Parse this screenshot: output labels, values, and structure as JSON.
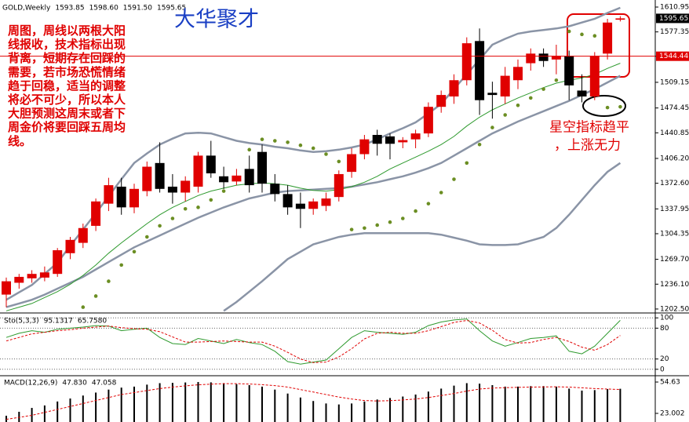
{
  "chart_data": [
    {
      "type": "candlestick",
      "title": "GOLD,Weekly",
      "ohlc_labels": [
        "1593.85",
        "1598.60",
        "1591.50",
        "1595.65"
      ],
      "categories": [
        null,
        null,
        null,
        null,
        null,
        null,
        null,
        null,
        null,
        null,
        null,
        null,
        null,
        null,
        null,
        null,
        null,
        null,
        null,
        null,
        null,
        null,
        null,
        null,
        null,
        null,
        null,
        null,
        null,
        null,
        null,
        null,
        null,
        null,
        null,
        null,
        null,
        null,
        null,
        null,
        null,
        null,
        null,
        null,
        null,
        null,
        null,
        null,
        null
      ],
      "open": [
        1222,
        1238,
        1244,
        1245,
        1250,
        1278,
        1292,
        1315,
        1345,
        1368,
        1340,
        1362,
        1400,
        1368,
        1360,
        1368,
        1410,
        1382,
        1375,
        1392,
        1415,
        1372,
        1358,
        1345,
        1338,
        1342,
        1354,
        1388,
        1412,
        1438,
        1436,
        1428,
        1432,
        1440,
        1476,
        1490,
        1512,
        1565,
        1495,
        1490,
        1512,
        1535,
        1548,
        1540,
        1545,
        1498,
        1490,
        1548,
        1593.85
      ],
      "high": [
        1245,
        1250,
        1255,
        1260,
        1285,
        1300,
        1318,
        1352,
        1380,
        1380,
        1372,
        1402,
        1428,
        1385,
        1382,
        1415,
        1430,
        1395,
        1392,
        1410,
        1425,
        1385,
        1370,
        1360,
        1352,
        1360,
        1390,
        1420,
        1438,
        1445,
        1440,
        1435,
        1445,
        1482,
        1498,
        1520,
        1570,
        1582,
        1510,
        1530,
        1540,
        1555,
        1555,
        1560,
        1552,
        1520,
        1550,
        1595,
        1598.6
      ],
      "low": [
        1205,
        1230,
        1238,
        1240,
        1246,
        1270,
        1285,
        1308,
        1335,
        1330,
        1332,
        1355,
        1360,
        1345,
        1348,
        1360,
        1380,
        1365,
        1370,
        1360,
        1360,
        1348,
        1330,
        1312,
        1330,
        1335,
        1348,
        1380,
        1405,
        1410,
        1405,
        1420,
        1420,
        1435,
        1468,
        1480,
        1505,
        1465,
        1460,
        1480,
        1500,
        1525,
        1530,
        1520,
        1485,
        1482,
        1485,
        1540,
        1591.5
      ],
      "close": [
        1240,
        1246,
        1250,
        1252,
        1282,
        1296,
        1312,
        1348,
        1370,
        1340,
        1365,
        1395,
        1365,
        1360,
        1376,
        1410,
        1386,
        1374,
        1383,
        1370,
        1372,
        1358,
        1340,
        1338,
        1348,
        1352,
        1385,
        1412,
        1432,
        1426,
        1426,
        1431,
        1440,
        1476,
        1492,
        1512,
        1562,
        1485,
        1492,
        1518,
        1530,
        1548,
        1538,
        1545,
        1505,
        1490,
        1545,
        1590,
        1595.65
      ],
      "up_color": "#e00000",
      "down_color": "#000000",
      "series": [
        {
          "style": "line",
          "color": "#8a94a6",
          "width": 2.5,
          "values": [
            1215,
            1225,
            1235,
            1250,
            1265,
            1288,
            1310,
            1332,
            1355,
            1378,
            1400,
            1413,
            1425,
            1433,
            1440,
            1441,
            1440,
            1435,
            1430,
            1427,
            1425,
            1422,
            1420,
            1417,
            1415,
            1416,
            1418,
            1421,
            1425,
            1432,
            1440,
            1447,
            1455,
            1467,
            1480,
            1500,
            1520,
            1540,
            1560,
            1568,
            1575,
            1578,
            1580,
            1582,
            1585,
            1590,
            1595,
            1603,
            1610
          ]
        },
        {
          "style": "line",
          "color": "#8a94a6",
          "width": 2.5,
          "values": [
            1205,
            1210,
            1215,
            1222,
            1230,
            1238,
            1246,
            1256,
            1266,
            1276,
            1286,
            1294,
            1302,
            1310,
            1318,
            1326,
            1333,
            1340,
            1346,
            1352,
            1356,
            1360,
            1362,
            1363,
            1364,
            1365,
            1366,
            1368,
            1371,
            1374,
            1378,
            1382,
            1387,
            1393,
            1400,
            1410,
            1420,
            1430,
            1440,
            1448,
            1456,
            1463,
            1470,
            1477,
            1484,
            1492,
            1500,
            1509,
            1518
          ]
        },
        {
          "style": "line",
          "color": "#8a94a6",
          "width": 2.5,
          "values": [
            null,
            null,
            null,
            null,
            null,
            null,
            null,
            null,
            null,
            null,
            null,
            null,
            null,
            null,
            null,
            null,
            null,
            1200,
            1212,
            1226,
            1240,
            1255,
            1270,
            1280,
            1290,
            1295,
            1300,
            1303,
            1305,
            1305,
            1305,
            1305,
            1305,
            1305,
            1303,
            1299,
            1295,
            1290,
            1289,
            1289,
            1290,
            1295,
            1300,
            1312,
            1330,
            1350,
            1370,
            1388,
            1400
          ]
        },
        {
          "style": "line",
          "color": "#2e9a2e",
          "width": 1,
          "values": [
            1200,
            1205,
            1210,
            1218,
            1226,
            1236,
            1248,
            1262,
            1278,
            1292,
            1305,
            1318,
            1330,
            1340,
            1348,
            1356,
            1362,
            1366,
            1370,
            1372,
            1373,
            1372,
            1370,
            1366,
            1363,
            1362,
            1364,
            1368,
            1374,
            1382,
            1392,
            1400,
            1408,
            1416,
            1425,
            1436,
            1450,
            1462,
            1472,
            1480,
            1488,
            1495,
            1502,
            1508,
            1512,
            1515,
            1520,
            1528,
            1535
          ]
        },
        {
          "style": "dots",
          "color": "#6b8e23",
          "width": 1,
          "values": [
            null,
            null,
            null,
            null,
            null,
            null,
            1205,
            1220,
            1240,
            1262,
            1280,
            1300,
            1315,
            1325,
            1338,
            1340,
            1350,
            1362,
            1378,
            1418,
            1432,
            1430,
            1428,
            1424,
            1420,
            1412,
            1402,
            1310,
            1312,
            1316,
            1320,
            1325,
            1335,
            1345,
            1360,
            1378,
            1400,
            1425,
            1448,
            1465,
            1478,
            1488,
            1500,
            1512,
            1578,
            1574,
            1572,
            1475,
            1476
          ]
        }
      ],
      "hline": {
        "value": 1544.44,
        "color": "#e00000"
      },
      "ylim": [
        1198.2,
        1620.5
      ],
      "yticks": [
        1610.95,
        1577.35,
        1544.44,
        1509.15,
        1474.45,
        1440.85,
        {
          "value": 1406.2,
          "label": "1406.20"
        },
        {
          "value": 1372.6,
          "label": "1372.60"
        },
        1337.95,
        1304.35,
        {
          "value": 1269.7,
          "label": "1269.70"
        },
        {
          "value": 1236.1,
          "label": "1236.10"
        },
        {
          "value": 1202.5,
          "label": "1202.50"
        }
      ],
      "watermark": "大华聚才",
      "note": [
        "周图，周线以两根大阳",
        "线报收，技术指标出现",
        "背离，短期存在回踩的",
        "需要，若市场恐慌情绪",
        "趋于回稳，适当的调整",
        "将必不可少，所以本人",
        "大胆预测这周末或者下",
        "周金价将要回踩五周均",
        "线。"
      ],
      "note2": [
        "星空指标趋平",
        "，上涨无力"
      ]
    },
    {
      "type": "line",
      "title": "Sto(5,3,3)",
      "last_labels": [
        "95.1317",
        "65.7580"
      ],
      "categories": [
        null,
        null,
        null,
        null,
        null,
        null,
        null,
        null,
        null,
        null,
        null,
        null,
        null,
        null,
        null,
        null,
        null,
        null,
        null,
        null,
        null,
        null,
        null,
        null,
        null,
        null,
        null,
        null,
        null,
        null,
        null,
        null,
        null,
        null,
        null,
        null,
        null,
        null,
        null,
        null,
        null,
        null,
        null,
        null,
        null,
        null,
        null,
        null,
        null
      ],
      "series": [
        {
          "style": "line",
          "color": "#2e9a2e",
          "values": [
            62,
            70,
            75,
            72,
            78,
            80,
            82,
            85,
            84,
            75,
            78,
            80,
            62,
            50,
            48,
            60,
            55,
            50,
            58,
            52,
            48,
            35,
            15,
            10,
            14,
            18,
            40,
            62,
            75,
            72,
            70,
            68,
            72,
            85,
            92,
            96,
            98,
            75,
            55,
            45,
            52,
            60,
            62,
            65,
            35,
            30,
            45,
            70,
            95.1317
          ]
        },
        {
          "style": "dashed",
          "color": "#e00000",
          "values": [
            55,
            62,
            69,
            72,
            75,
            77,
            80,
            82,
            84,
            81,
            79,
            78,
            73,
            63,
            53,
            53,
            54,
            55,
            54,
            53,
            53,
            45,
            33,
            20,
            13,
            14,
            24,
            40,
            59,
            70,
            72,
            70,
            70,
            75,
            83,
            91,
            95,
            90,
            76,
            58,
            51,
            52,
            58,
            62,
            54,
            43,
            37,
            48,
            65.758
          ]
        }
      ],
      "ylim": [
        -11,
        108
      ],
      "yticks": [
        100,
        80,
        20,
        0
      ],
      "grid": true
    },
    {
      "type": "bar",
      "title": "MACD(12,26,9)",
      "last_labels": [
        "47.830",
        "47.058"
      ],
      "categories": [
        null,
        null,
        null,
        null,
        null,
        null,
        null,
        null,
        null,
        null,
        null,
        null,
        null,
        null,
        null,
        null,
        null,
        null,
        null,
        null,
        null,
        null,
        null,
        null,
        null,
        null,
        null,
        null,
        null,
        null,
        null,
        null,
        null,
        null,
        null,
        null,
        null,
        null,
        null,
        null,
        null,
        null,
        null,
        null,
        null,
        null,
        null,
        null,
        null
      ],
      "values": [
        20.6,
        24.6,
        28.5,
        31,
        35,
        38,
        41,
        44,
        47,
        49,
        50,
        52,
        53.5,
        53.8,
        54.2,
        54.63,
        54.3,
        53.5,
        52.5,
        51.5,
        50,
        47,
        43,
        39,
        35.5,
        33,
        32,
        33,
        35,
        37,
        38.5,
        40,
        42,
        45,
        48,
        51,
        53.5,
        53,
        51.5,
        50,
        50,
        50.5,
        50.5,
        50,
        48,
        46,
        46.5,
        47.5,
        47.83
      ],
      "color": "#000000",
      "series": [
        {
          "style": "dashed",
          "color": "#e00000",
          "values": [
            17,
            19,
            21,
            24,
            27,
            30,
            33,
            36,
            39,
            42,
            44,
            46,
            48,
            49.5,
            50.8,
            51.8,
            52.5,
            53,
            53,
            52.6,
            52,
            51,
            49.5,
            47,
            44.5,
            42,
            39.5,
            37.5,
            36,
            35.5,
            35.8,
            36.5,
            37.5,
            39,
            41,
            43,
            45.5,
            47.5,
            48.5,
            49,
            49.3,
            49.5,
            49.7,
            49.8,
            49.5,
            48.8,
            48,
            47.5,
            47.058
          ]
        }
      ],
      "ylim": [
        14.3,
        60.2
      ],
      "yticks": [
        54.63,
        23.002
      ]
    }
  ]
}
